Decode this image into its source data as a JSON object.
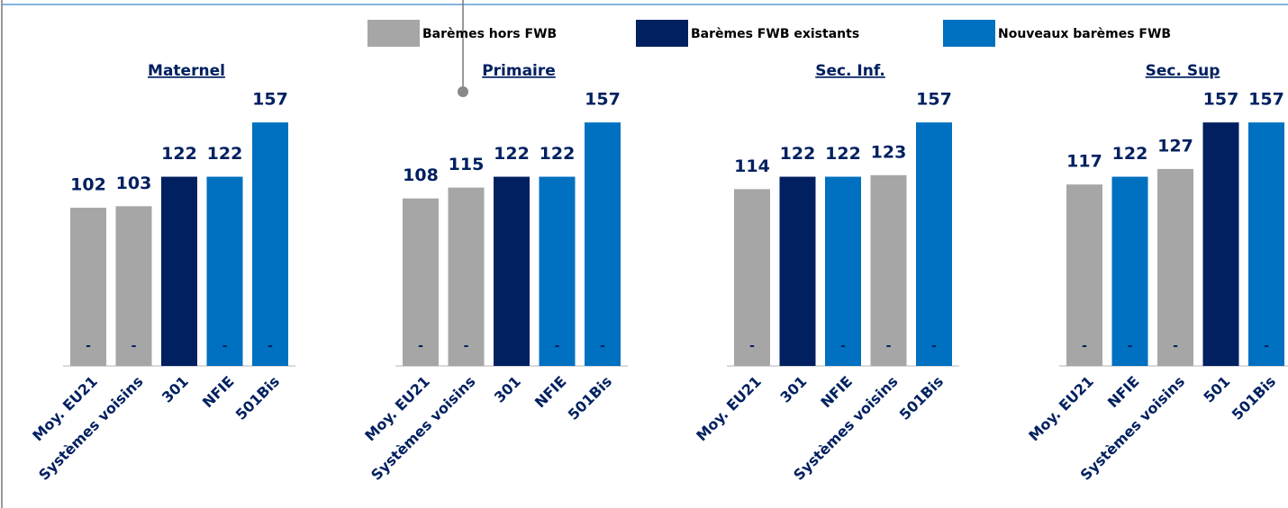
{
  "legend": [
    {
      "name": "Barèmes hors FWB",
      "color": "#a6a6a6"
    },
    {
      "name": "Barèmes FWB existants",
      "color": "#002060"
    },
    {
      "name": "Nouveaux barèmes FWB",
      "color": "#0070c0"
    }
  ],
  "chart_data": [
    {
      "type": "bar",
      "title": "Maternel",
      "categories": [
        "Moy. EU21",
        "Systèmes voisins",
        "301",
        "NFIE",
        "501Bis"
      ],
      "values": [
        102,
        103,
        122,
        122,
        157
      ],
      "colors": [
        "#a6a6a6",
        "#a6a6a6",
        "#002060",
        "#0070c0",
        "#0070c0"
      ],
      "bar_labels": [
        "-",
        "-",
        "-",
        "-",
        "-"
      ],
      "ylim": [
        0,
        160
      ]
    },
    {
      "type": "bar",
      "title": "Primaire",
      "categories": [
        "Moy. EU21",
        "Systèmes voisins",
        "301",
        "NFIE",
        "501Bis"
      ],
      "values": [
        108,
        115,
        122,
        122,
        157
      ],
      "colors": [
        "#a6a6a6",
        "#a6a6a6",
        "#002060",
        "#0070c0",
        "#0070c0"
      ],
      "bar_labels": [
        "-",
        "-",
        "-",
        "-",
        "-"
      ],
      "ylim": [
        0,
        160
      ]
    },
    {
      "type": "bar",
      "title": "Sec. Inf.",
      "categories": [
        "Moy. EU21",
        "301",
        "NFIE",
        "Systèmes voisins",
        "501Bis"
      ],
      "values": [
        114,
        122,
        122,
        123,
        157
      ],
      "colors": [
        "#a6a6a6",
        "#002060",
        "#0070c0",
        "#a6a6a6",
        "#0070c0"
      ],
      "bar_labels": [
        "-",
        "-",
        "-",
        "-",
        "-"
      ],
      "ylim": [
        0,
        160
      ]
    },
    {
      "type": "bar",
      "title": "Sec. Sup",
      "categories": [
        "Moy. EU21",
        "NFIE",
        "Systèmes voisins",
        "501",
        "501Bis"
      ],
      "values": [
        117,
        122,
        127,
        157,
        157
      ],
      "colors": [
        "#a6a6a6",
        "#0070c0",
        "#a6a6a6",
        "#002060",
        "#0070c0"
      ],
      "bar_labels": [
        "-",
        "-",
        "-",
        "-",
        "-"
      ],
      "ylim": [
        0,
        160
      ]
    }
  ]
}
